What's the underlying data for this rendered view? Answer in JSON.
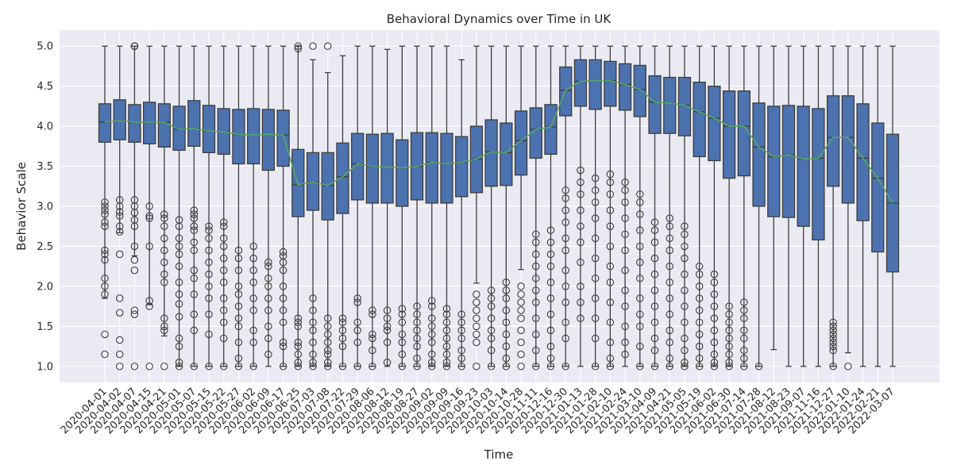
{
  "chart_data": {
    "type": "box",
    "title": "Behavioral Dynamics over Time in UK",
    "xlabel": "Time",
    "ylabel": "Behavior Scale",
    "ylim": [
      0.8,
      5.2
    ],
    "yticks": [
      "1.0",
      "1.5",
      "2.0",
      "2.5",
      "3.0",
      "3.5",
      "4.0",
      "4.5",
      "5.0"
    ],
    "grid": true,
    "colors": {
      "background": "#eaeaf2",
      "grid": "#ffffff",
      "box": "#4c72b0",
      "median_line": "#55a868",
      "edge": "#3d3d3d"
    },
    "categories": [
      "2020-04-01",
      "2020-04-02",
      "2020-04-07",
      "2020-04-15",
      "2020-04-21",
      "2020-05-01",
      "2020-05-07",
      "2020-05-15",
      "2020-05-22",
      "2020-05-27",
      "2020-06-02",
      "2020-06-09",
      "2020-06-17",
      "2020-06-25",
      "2020-07-03",
      "2020-07-08",
      "2020-07-22",
      "2020-07-29",
      "2020-08-06",
      "2020-08-12",
      "2020-08-19",
      "2020-08-27",
      "2020-09-02",
      "2020-09-09",
      "2020-09-16",
      "2020-09-23",
      "2020-10-03",
      "2020-10-14",
      "2020-10-28",
      "2020-11-11",
      "2020-12-16",
      "2020-12-30",
      "2021-01-13",
      "2021-01-28",
      "2021-02-10",
      "2021-02-24",
      "2021-03-10",
      "2021-04-09",
      "2021-04-21",
      "2021-05-05",
      "2021-05-19",
      "2021-06-02",
      "2021-06-30",
      "2021-07-14",
      "2021-07-28",
      "2021-08-12",
      "2021-08-23",
      "2021-09-07",
      "2021-11-16",
      "2021-12-27",
      "2022-01-10",
      "2022-01-24",
      "2022-02-21",
      "2022-03-07"
    ],
    "q1": [
      3.8,
      3.83,
      3.8,
      3.78,
      3.74,
      3.7,
      3.75,
      3.67,
      3.65,
      3.53,
      3.53,
      3.45,
      3.5,
      2.87,
      2.95,
      2.83,
      2.91,
      3.08,
      3.04,
      3.04,
      3.0,
      3.08,
      3.04,
      3.04,
      3.12,
      3.17,
      3.25,
      3.26,
      3.39,
      3.6,
      3.65,
      4.13,
      4.25,
      4.21,
      4.25,
      4.2,
      4.12,
      3.91,
      3.91,
      3.88,
      3.62,
      3.57,
      3.35,
      3.38,
      3.0,
      2.87,
      2.86,
      2.75,
      2.58,
      3.25,
      3.04,
      2.82,
      2.43,
      2.18
    ],
    "median": [
      4.05,
      4.07,
      4.05,
      4.05,
      4.05,
      3.96,
      3.97,
      3.94,
      3.93,
      3.9,
      3.89,
      3.9,
      3.89,
      3.27,
      3.3,
      3.26,
      3.37,
      3.53,
      3.5,
      3.49,
      3.48,
      3.5,
      3.55,
      3.53,
      3.55,
      3.59,
      3.68,
      3.67,
      3.82,
      3.96,
      3.99,
      4.45,
      4.56,
      4.57,
      4.57,
      4.52,
      4.46,
      4.3,
      4.29,
      4.26,
      4.18,
      4.1,
      4.0,
      4.0,
      3.74,
      3.62,
      3.64,
      3.59,
      3.6,
      3.86,
      3.86,
      3.6,
      3.35,
      3.04
    ],
    "q3": [
      4.28,
      4.33,
      4.27,
      4.3,
      4.28,
      4.25,
      4.32,
      4.26,
      4.22,
      4.21,
      4.22,
      4.21,
      4.2,
      3.71,
      3.67,
      3.67,
      3.79,
      3.91,
      3.9,
      3.91,
      3.83,
      3.92,
      3.92,
      3.91,
      3.87,
      4.0,
      4.08,
      4.04,
      4.19,
      4.23,
      4.27,
      4.74,
      4.83,
      4.83,
      4.81,
      4.78,
      4.76,
      4.63,
      4.61,
      4.61,
      4.55,
      4.5,
      4.44,
      4.44,
      4.29,
      4.25,
      4.26,
      4.25,
      4.22,
      4.38,
      4.38,
      4.28,
      4.04,
      3.9
    ],
    "whisker_low": [
      1.85,
      2.67,
      2.38,
      1.77,
      1.38,
      1.0,
      1.0,
      1.0,
      1.0,
      1.0,
      1.0,
      1.0,
      1.0,
      1.0,
      1.0,
      1.0,
      1.0,
      1.0,
      1.0,
      1.0,
      1.0,
      1.0,
      1.0,
      1.0,
      1.0,
      2.04,
      1.0,
      1.0,
      2.21,
      1.0,
      1.0,
      1.0,
      1.0,
      1.0,
      1.0,
      1.0,
      1.0,
      1.0,
      1.0,
      1.0,
      1.0,
      1.0,
      1.0,
      1.0,
      1.0,
      1.21,
      1.0,
      1.0,
      1.0,
      1.0,
      1.17,
      1.0,
      1.0,
      1.0
    ],
    "whisker_high": [
      5.0,
      5.0,
      5.0,
      5.0,
      5.0,
      5.0,
      5.0,
      5.0,
      5.0,
      5.0,
      5.0,
      5.0,
      5.0,
      5.0,
      4.83,
      4.67,
      4.88,
      5.0,
      5.0,
      4.96,
      5.0,
      5.0,
      5.0,
      5.0,
      4.83,
      5.0,
      5.0,
      5.0,
      5.0,
      5.0,
      5.0,
      5.0,
      5.0,
      5.0,
      5.0,
      5.0,
      5.0,
      5.0,
      5.0,
      5.0,
      5.0,
      5.0,
      5.0,
      5.0,
      5.0,
      5.0,
      5.0,
      5.0,
      5.0,
      5.0,
      5.0,
      5.0,
      5.0,
      5.0
    ],
    "outliers": [
      [
        3.05,
        3.0,
        2.95,
        2.9,
        2.8,
        2.75,
        2.45,
        2.4,
        2.33,
        2.1,
        2.0,
        1.9,
        1.4,
        1.15
      ],
      [
        3.08,
        3.0,
        2.93,
        2.88,
        2.75,
        2.68,
        2.4,
        1.85,
        1.67,
        1.33,
        1.15,
        1.0
      ],
      [
        5.0,
        5.0,
        5.0,
        3.08,
        3.0,
        2.92,
        2.83,
        2.75,
        2.5,
        2.33,
        2.2,
        1.7,
        1.65,
        1.0
      ],
      [
        3.0,
        2.88,
        2.85,
        2.5,
        1.82,
        1.75,
        1.0
      ],
      [
        2.9,
        2.85,
        2.75,
        2.6,
        2.45,
        2.3,
        2.15,
        2.05,
        1.6,
        1.5,
        1.45,
        1.0
      ],
      [
        2.83,
        2.75,
        2.6,
        2.5,
        2.4,
        2.25,
        2.05,
        1.9,
        1.78,
        1.62,
        1.35,
        1.25,
        1.05,
        1.0
      ],
      [
        2.95,
        2.9,
        2.85,
        2.75,
        2.7,
        2.55,
        2.45,
        2.2,
        2.1,
        1.9,
        1.65,
        1.45,
        1.0
      ],
      [
        2.75,
        2.7,
        2.6,
        2.45,
        2.3,
        2.15,
        2.0,
        1.85,
        1.65,
        1.4,
        1.0
      ],
      [
        2.8,
        2.75,
        2.6,
        2.5,
        2.35,
        2.2,
        2.05,
        1.85,
        1.7,
        1.55,
        1.35,
        1.0
      ],
      [
        2.45,
        2.35,
        2.2,
        2.0,
        1.9,
        1.75,
        1.6,
        1.5,
        1.3,
        1.1,
        1.0
      ],
      [
        2.5,
        2.35,
        2.2,
        2.05,
        1.85,
        1.7,
        1.45,
        1.3,
        1.0
      ],
      [
        2.3,
        2.25,
        2.1,
        2.0,
        1.85,
        1.7,
        1.5,
        1.35,
        1.15
      ],
      [
        2.43,
        2.38,
        2.3,
        2.2,
        2.0,
        1.85,
        1.7,
        1.55,
        1.3,
        1.25,
        1.0
      ],
      [
        1.6,
        1.55,
        1.5,
        1.3,
        1.25,
        1.15,
        1.05,
        1.0,
        5.0,
        4.97
      ],
      [
        1.85,
        1.7,
        1.55,
        1.45,
        1.3,
        1.15,
        1.05,
        1.0,
        5.0
      ],
      [
        1.6,
        1.5,
        1.4,
        1.3,
        1.2,
        1.15,
        1.05,
        1.0,
        5.0
      ],
      [
        1.6,
        1.55,
        1.45,
        1.35,
        1.25,
        1.0
      ],
      [
        1.85,
        1.8,
        1.55,
        1.45,
        1.3,
        1.0
      ],
      [
        1.7,
        1.65,
        1.4,
        1.35,
        1.2,
        1.0
      ],
      [
        1.7,
        1.6,
        1.5,
        1.45,
        1.3,
        1.05
      ],
      [
        1.72,
        1.65,
        1.55,
        1.4,
        1.3,
        1.15,
        1.0
      ],
      [
        1.75,
        1.65,
        1.55,
        1.45,
        1.35,
        1.25,
        1.1,
        1.0
      ],
      [
        1.82,
        1.75,
        1.6,
        1.5,
        1.4,
        1.3,
        1.15,
        1.05,
        1.0
      ],
      [
        1.72,
        1.65,
        1.55,
        1.45,
        1.35,
        1.25,
        1.15,
        1.05,
        1.0
      ],
      [
        1.65,
        1.55,
        1.45,
        1.35,
        1.2,
        1.1,
        1.0
      ],
      [
        1.9,
        1.8,
        1.7,
        1.6,
        1.5,
        1.4,
        1.3,
        1.0
      ],
      [
        1.95,
        1.85,
        1.75,
        1.6,
        1.45,
        1.35,
        1.2,
        1.0
      ],
      [
        2.05,
        1.95,
        1.85,
        1.7,
        1.55,
        1.4,
        1.25,
        1.1,
        1.0
      ],
      [
        2.0,
        1.9,
        1.8,
        1.7,
        1.6,
        1.45,
        1.3,
        1.15,
        1.0
      ],
      [
        2.65,
        2.55,
        2.4,
        2.25,
        2.1,
        1.95,
        1.8,
        1.6,
        1.4,
        1.2,
        1.0
      ],
      [
        2.7,
        2.55,
        2.4,
        2.25,
        2.05,
        1.85,
        1.65,
        1.45,
        1.25,
        1.1,
        1.0
      ],
      [
        3.2,
        3.1,
        2.95,
        2.8,
        2.6,
        2.45,
        2.2,
        2.0,
        1.8,
        1.55,
        1.35,
        1.0
      ],
      [
        3.45,
        3.3,
        3.15,
        2.95,
        2.75,
        2.55,
        2.3,
        2.0,
        1.8,
        1.6
      ],
      [
        3.35,
        3.2,
        3.05,
        2.85,
        2.6,
        2.35,
        2.1,
        1.85,
        1.6,
        1.35,
        1.0
      ],
      [
        3.4,
        3.3,
        3.15,
        2.95,
        2.75,
        2.5,
        2.25,
        2.05,
        1.8,
        1.55,
        1.3,
        1.1,
        1.0
      ],
      [
        3.3,
        3.2,
        3.05,
        2.85,
        2.65,
        2.45,
        2.2,
        1.95,
        1.75,
        1.5,
        1.3,
        1.15
      ],
      [
        3.15,
        3.05,
        2.9,
        2.7,
        2.5,
        2.3,
        2.1,
        1.85,
        1.65,
        1.5,
        1.25,
        1.0
      ],
      [
        2.8,
        2.7,
        2.55,
        2.35,
        2.15,
        1.95,
        1.75,
        1.55,
        1.35,
        1.2,
        1.0
      ],
      [
        2.85,
        2.75,
        2.6,
        2.45,
        2.25,
        2.05,
        1.85,
        1.65,
        1.45,
        1.3,
        1.1,
        1.0
      ],
      [
        2.75,
        2.65,
        2.5,
        2.35,
        2.15,
        1.95,
        1.75,
        1.55,
        1.35,
        1.2,
        1.05,
        1.0
      ],
      [
        2.25,
        2.15,
        2.0,
        1.85,
        1.7,
        1.55,
        1.4,
        1.25,
        1.1,
        1.0
      ],
      [
        2.15,
        2.05,
        1.9,
        1.75,
        1.6,
        1.45,
        1.3,
        1.15,
        1.05,
        1.0
      ],
      [
        1.75,
        1.65,
        1.55,
        1.45,
        1.35,
        1.25,
        1.15,
        1.05,
        1.0
      ],
      [
        1.8,
        1.7,
        1.6,
        1.45,
        1.35,
        1.2,
        1.1,
        1.0
      ],
      [
        1.0
      ],
      [],
      [],
      [],
      [],
      [
        1.55,
        1.5,
        1.45,
        1.4,
        1.35,
        1.3,
        1.25,
        1.2,
        1.0
      ],
      [
        1.0
      ],
      [],
      [],
      []
    ]
  }
}
